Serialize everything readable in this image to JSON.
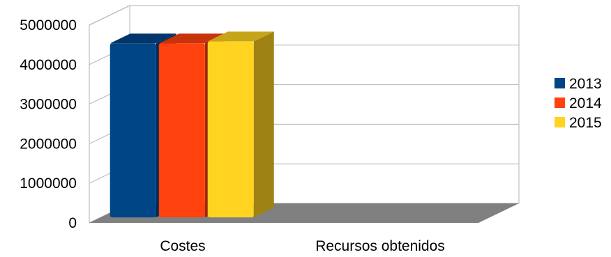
{
  "chart_data": {
    "type": "bar",
    "style": "3d-clustered-column",
    "categories": [
      "Costes",
      "Recursos obtenidos"
    ],
    "series": [
      {
        "name": "2013",
        "values": [
          4400000,
          0
        ],
        "color": "#004586"
      },
      {
        "name": "2014",
        "values": [
          4400000,
          0
        ],
        "color": "#ff420e"
      },
      {
        "name": "2015",
        "values": [
          4450000,
          0
        ],
        "color": "#ffd320"
      }
    ],
    "yticks": [
      "0",
      "1000000",
      "2000000",
      "3000000",
      "4000000",
      "5000000"
    ],
    "ylim": [
      0,
      5000000
    ],
    "grid": true,
    "legend": "right",
    "title": "",
    "xlabel": "",
    "ylabel": "",
    "colors": {
      "floor": "#808080",
      "wall_line": "#b3b3b3"
    }
  }
}
